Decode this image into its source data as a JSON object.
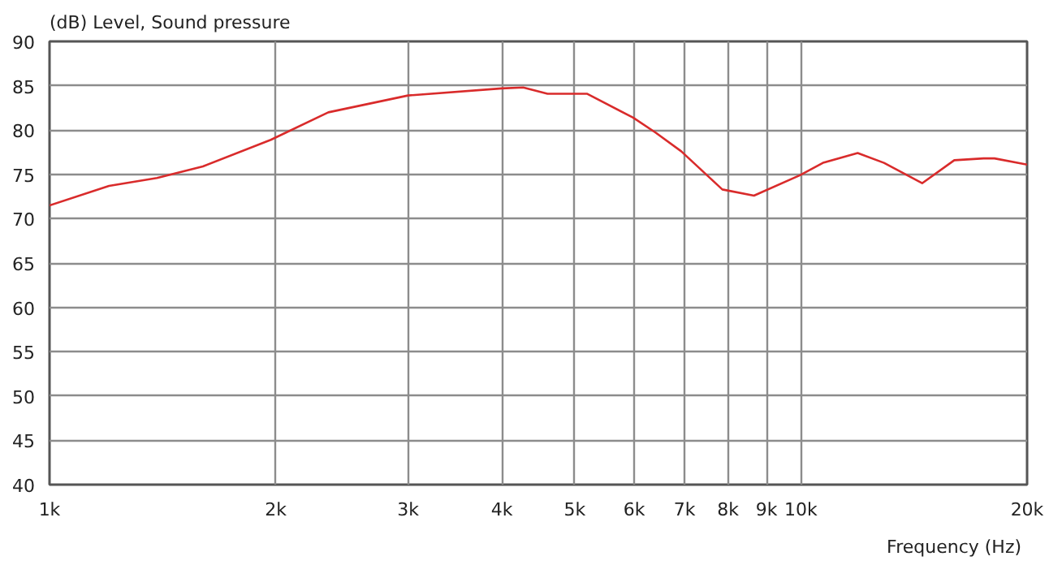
{
  "chart_data": {
    "type": "line",
    "ylabel": "(dB)  Level, Sound pressure",
    "xlabel": "Frequency  (Hz)",
    "log": "x",
    "xlim": [
      1000,
      20000
    ],
    "ylim": [
      40,
      90
    ],
    "xticks": [
      {
        "value": 1000,
        "label": "1k"
      },
      {
        "value": 2000,
        "label": "2k"
      },
      {
        "value": 3000,
        "label": "3k"
      },
      {
        "value": 4000,
        "label": "4k"
      },
      {
        "value": 5000,
        "label": "5k"
      },
      {
        "value": 6000,
        "label": "6k"
      },
      {
        "value": 7000,
        "label": "7k"
      },
      {
        "value": 8000,
        "label": "8k"
      },
      {
        "value": 9000,
        "label": "9k"
      },
      {
        "value": 10000,
        "label": "10k"
      },
      {
        "value": 20000,
        "label": "20k"
      }
    ],
    "yticks": [
      40,
      45,
      50,
      55,
      60,
      65,
      70,
      75,
      80,
      85,
      90
    ],
    "grid": true,
    "marker": "none",
    "line_style": "solid",
    "series": [
      {
        "color": "#d92b2b",
        "x": [
          1000,
          1200,
          1390,
          1600,
          1970,
          2350,
          3000,
          4000,
          4270,
          4600,
          5190,
          5980,
          6410,
          6930,
          7860,
          8660,
          9970,
          10700,
          11900,
          12900,
          14500,
          16000,
          17500,
          18100,
          20000
        ],
        "values": [
          71.5,
          73.7,
          74.6,
          75.9,
          78.9,
          82.0,
          83.9,
          84.7,
          84.8,
          84.1,
          84.1,
          81.4,
          79.7,
          77.6,
          73.3,
          72.6,
          74.9,
          76.3,
          77.4,
          76.3,
          74.0,
          76.6,
          76.8,
          76.8,
          76.1
        ]
      }
    ]
  }
}
